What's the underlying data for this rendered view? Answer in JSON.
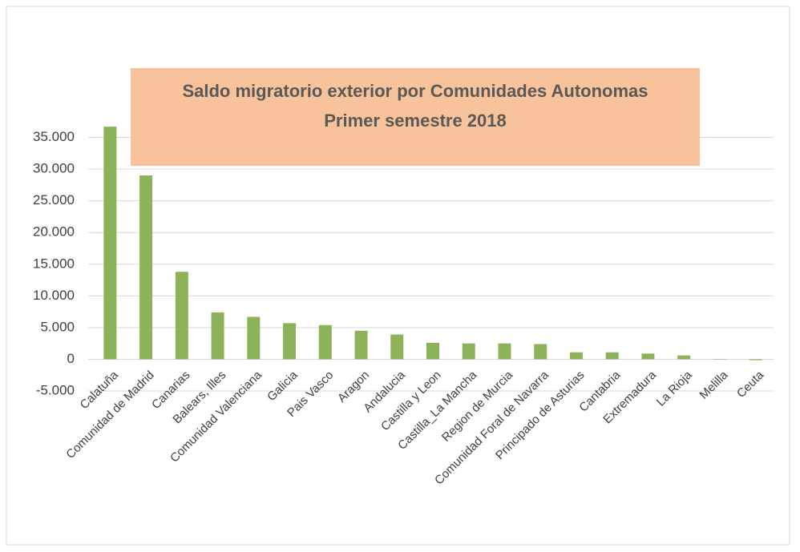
{
  "chart_data": {
    "type": "bar",
    "title": "Saldo migratorio exterior por Comunidades Autonomas",
    "subtitle": "Primer semestre 2018",
    "categories": [
      "Calatuña",
      "Comunidad de Madrid",
      "Canarias",
      "Balears, Illes",
      "Comunidad Valenciana",
      "Galicia",
      "Pais Vasco",
      "Aragon",
      "Andalucia",
      "Castilla y Leon",
      "Castilla_La Mancha",
      "Region de Murcia",
      "Comunidad Foral de Navarra",
      "Principado de Asturias",
      "Cantabria",
      "Extremadura",
      "La Rioja",
      "Melilla",
      "Ceuta"
    ],
    "values": [
      36700,
      29000,
      13800,
      7400,
      6700,
      5700,
      5400,
      4500,
      3900,
      2600,
      2500,
      2500,
      2400,
      1100,
      1100,
      900,
      600,
      50,
      -150
    ],
    "color": "#8db35a",
    "ylim": [
      -5000,
      40000
    ],
    "yticks": [
      {
        "value": -5000,
        "label": "-5.000"
      },
      0,
      {
        "value": 5000,
        "label": "5.000"
      },
      {
        "value": 10000,
        "label": "10.000"
      },
      {
        "value": 15000,
        "label": "15.000"
      },
      {
        "value": 20000,
        "label": "20.000"
      },
      {
        "value": 25000,
        "label": "25.000"
      },
      {
        "value": 30000,
        "label": "30.000"
      },
      {
        "value": 35000,
        "label": "35.000"
      }
    ],
    "grid": true
  }
}
